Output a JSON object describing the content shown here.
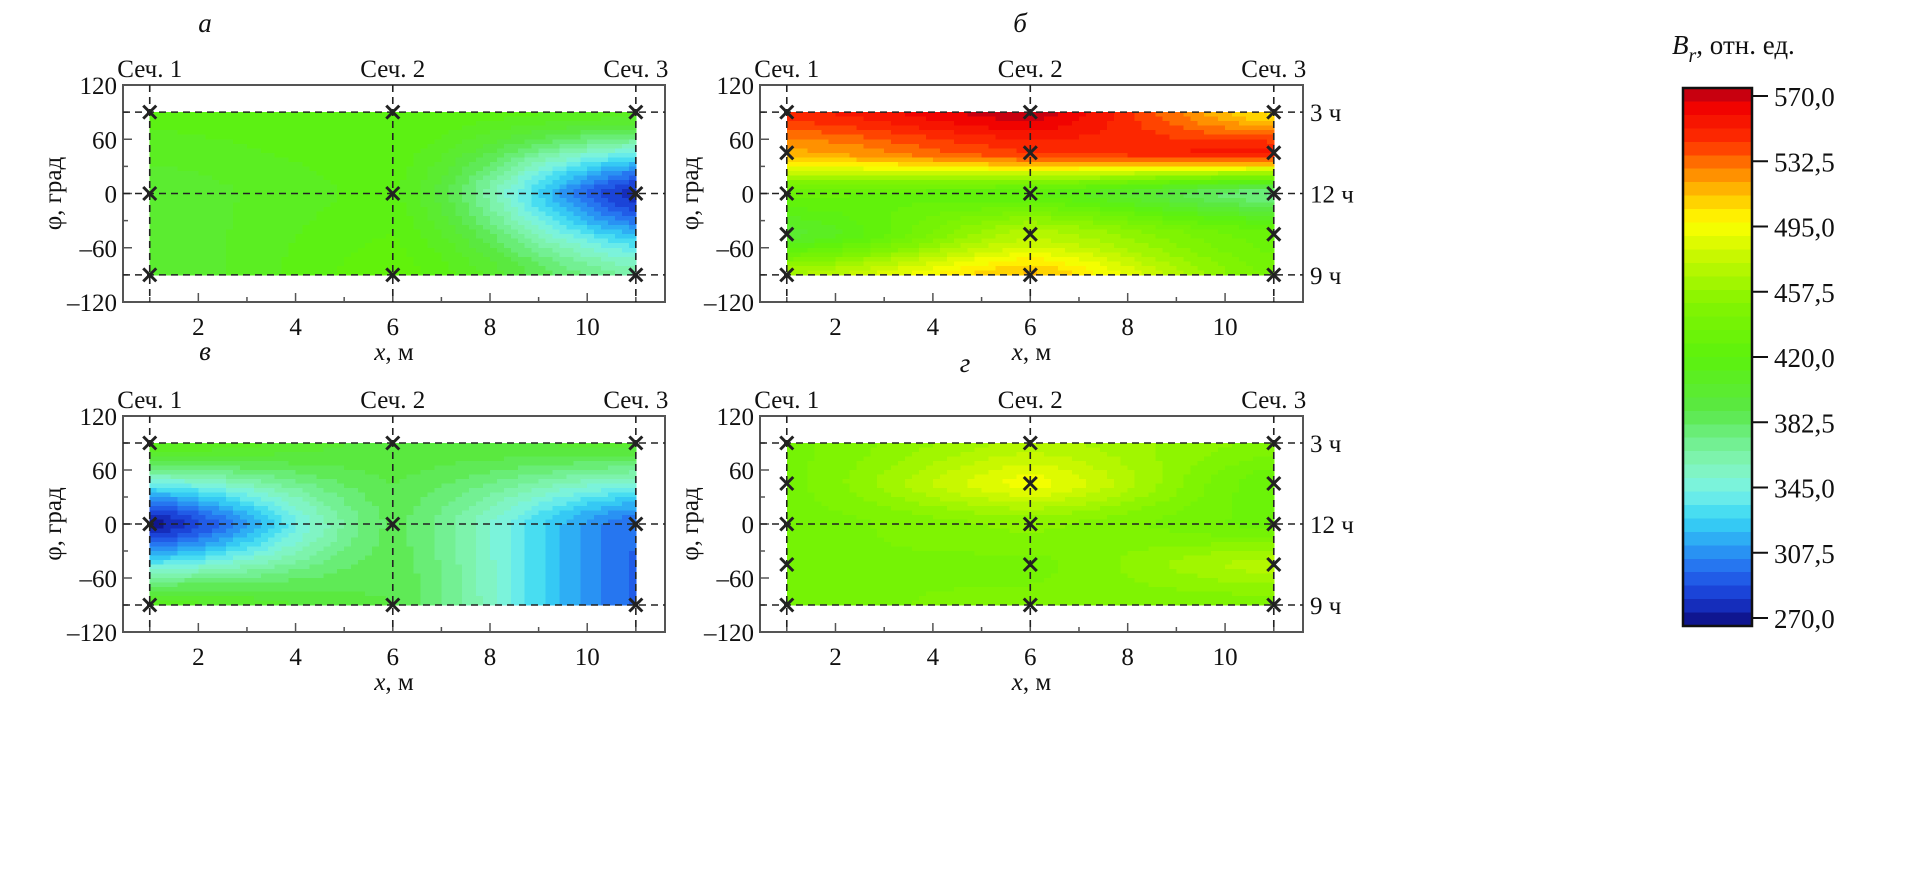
{
  "chart_data": [
    {
      "type": "heatmap",
      "panel_label": "а",
      "xlabel_var": "x",
      "xlabel_unit": ", м",
      "ylabel": "φ, град",
      "xlim": [
        0.45,
        11.6
      ],
      "ylim": [
        -120,
        120
      ],
      "x_ticks": [
        "2",
        "4",
        "6",
        "8",
        "10"
      ],
      "y_ticks": [
        "120",
        "60",
        "0",
        "–60",
        "–120"
      ],
      "section_labels": [
        "Сеч. 1",
        "Сеч. 2",
        "Сеч. 3"
      ],
      "right_labels": [],
      "measure_x": [
        1,
        6,
        11
      ],
      "measure_phi": [
        90,
        0,
        -90
      ],
      "values": [
        [
          415,
          420,
          410
        ],
        [
          400,
          415,
          278
        ],
        [
          398,
          425,
          365
        ]
      ]
    },
    {
      "type": "heatmap",
      "panel_label": "б",
      "xlabel_var": "x",
      "xlabel_unit": ", м",
      "ylabel": "φ, град",
      "xlim": [
        0.45,
        11.6
      ],
      "ylim": [
        -120,
        120
      ],
      "x_ticks": [
        "2",
        "4",
        "6",
        "8",
        "10"
      ],
      "y_ticks": [
        "120",
        "60",
        "0",
        "–60",
        "–120"
      ],
      "section_labels": [
        "Сеч. 1",
        "Сеч. 2",
        "Сеч. 3"
      ],
      "right_labels": [
        "3 ч",
        "12 ч",
        "9 ч"
      ],
      "measure_x": [
        1,
        6,
        11
      ],
      "measure_phi": [
        90,
        45,
        0,
        -45,
        -90
      ],
      "values": [
        [
          545,
          568,
          500
        ],
        [
          515,
          540,
          552
        ],
        [
          430,
          420,
          372
        ],
        [
          400,
          470,
          430
        ],
        [
          465,
          512,
          440
        ]
      ]
    },
    {
      "type": "heatmap",
      "panel_label": "в",
      "xlabel_var": "x",
      "xlabel_unit": ", м",
      "ylabel": "φ, град",
      "xlim": [
        0.45,
        11.6
      ],
      "ylim": [
        -120,
        120
      ],
      "x_ticks": [
        "2",
        "4",
        "6",
        "8",
        "10"
      ],
      "y_ticks": [
        "120",
        "60",
        "0",
        "–60",
        "–120"
      ],
      "section_labels": [
        "Сеч. 1",
        "Сеч. 2",
        "Сеч. 3"
      ],
      "right_labels": [],
      "measure_x": [
        1,
        6,
        11
      ],
      "measure_phi": [
        90,
        0,
        -90
      ],
      "values": [
        [
          415,
          395,
          400
        ],
        [
          272,
          385,
          300
        ],
        [
          410,
          390,
          298
        ]
      ]
    },
    {
      "type": "heatmap",
      "panel_label": "г",
      "xlabel_var": "x",
      "xlabel_unit": ", м",
      "ylabel": "φ, град",
      "xlim": [
        0.45,
        11.6
      ],
      "ylim": [
        -120,
        120
      ],
      "x_ticks": [
        "2",
        "4",
        "6",
        "8",
        "10"
      ],
      "y_ticks": [
        "120",
        "60",
        "0",
        "–60",
        "–120"
      ],
      "section_labels": [
        "Сеч. 1",
        "Сеч. 2",
        "Сеч. 3"
      ],
      "right_labels": [
        "3 ч",
        "12 ч",
        "9 ч"
      ],
      "measure_x": [
        1,
        6,
        11
      ],
      "measure_phi": [
        90,
        45,
        0,
        -45,
        -90
      ],
      "values": [
        [
          440,
          468,
          448
        ],
        [
          440,
          492,
          428
        ],
        [
          438,
          452,
          432
        ],
        [
          442,
          440,
          470
        ],
        [
          440,
          445,
          445
        ]
      ]
    }
  ],
  "colorbar": {
    "title_var": "B",
    "title_sub": "r",
    "title_rest": ", отн. ед.",
    "range": [
      270.0,
      570.0
    ],
    "ticks": [
      "570,0",
      "532,5",
      "495,0",
      "457,5",
      "420,0",
      "382,5",
      "345,0",
      "307,5",
      "270,0"
    ],
    "colormap": [
      [
        270,
        "#0c0a7a"
      ],
      [
        285,
        "#1838d0"
      ],
      [
        300,
        "#2468ee"
      ],
      [
        315,
        "#2aa0f4"
      ],
      [
        330,
        "#38d6f4"
      ],
      [
        345,
        "#78f2e6"
      ],
      [
        360,
        "#82f4b8"
      ],
      [
        375,
        "#6eee86"
      ],
      [
        390,
        "#5ae846"
      ],
      [
        420,
        "#5cf20c"
      ],
      [
        450,
        "#84f400"
      ],
      [
        475,
        "#c4f800"
      ],
      [
        495,
        "#ffff00"
      ],
      [
        510,
        "#ffc400"
      ],
      [
        525,
        "#ff8000"
      ],
      [
        540,
        "#ff3000"
      ],
      [
        560,
        "#f00000"
      ],
      [
        570,
        "#b00018"
      ]
    ]
  }
}
